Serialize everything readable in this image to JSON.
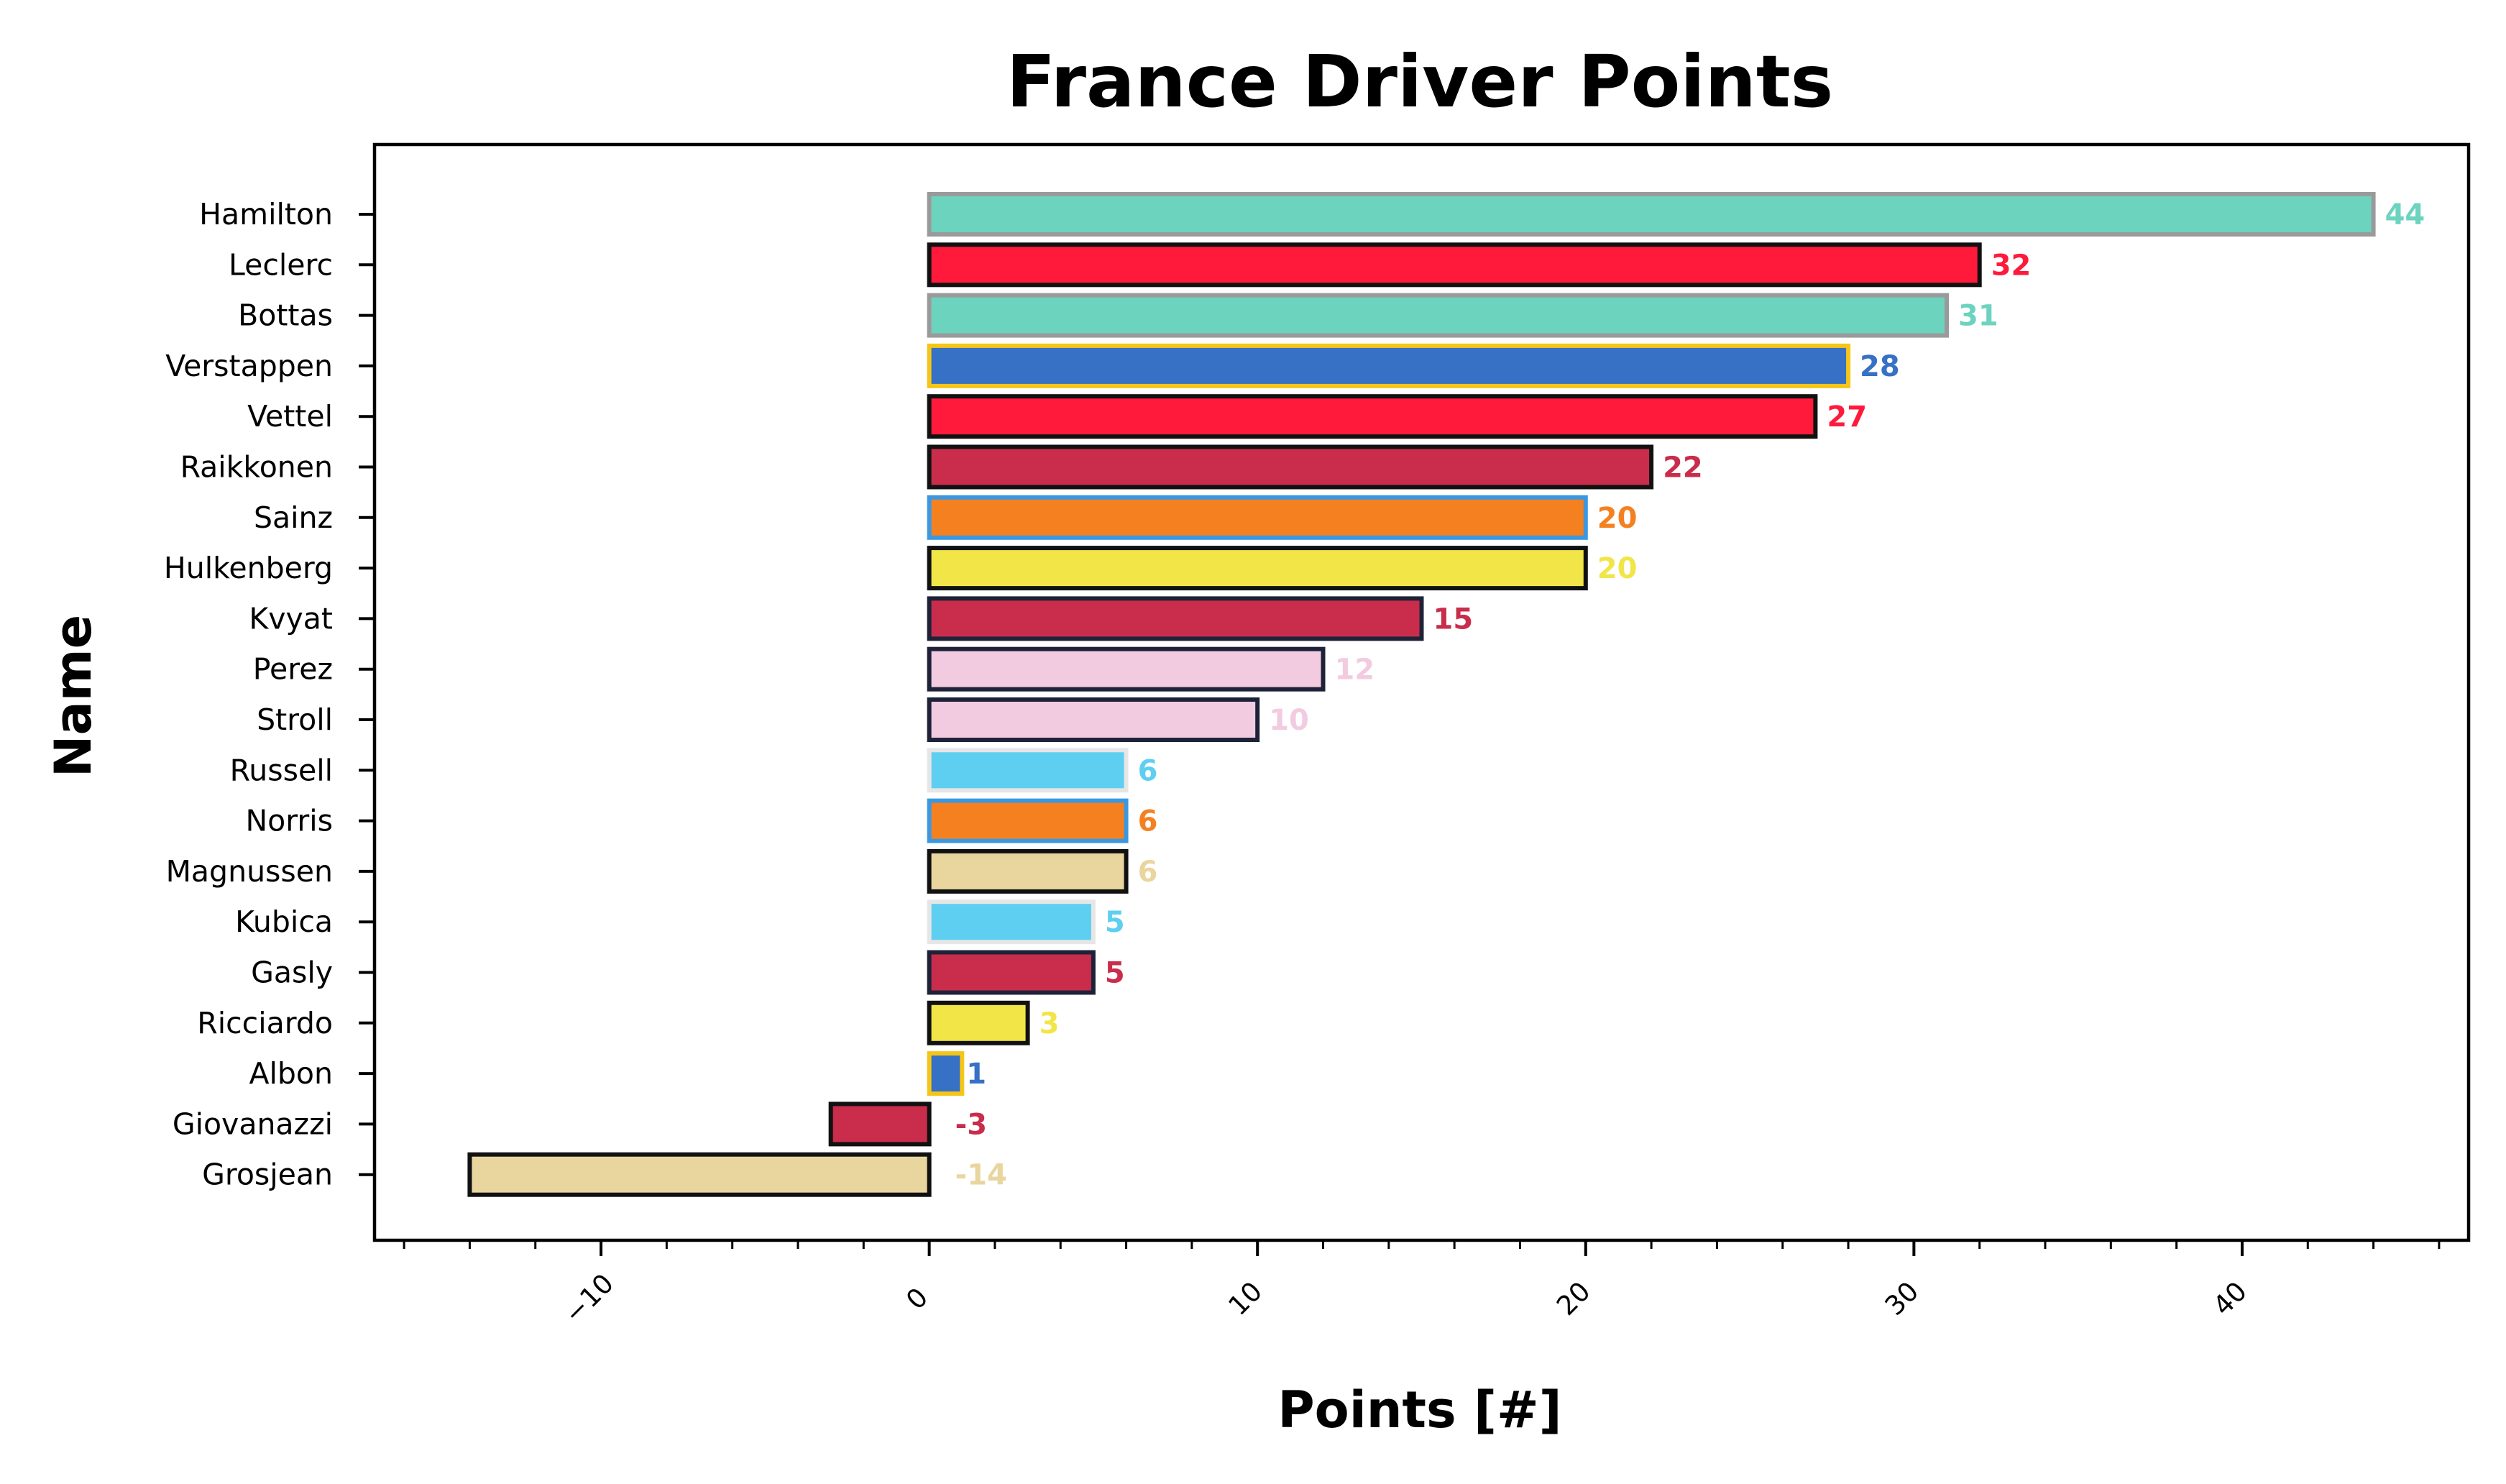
{
  "chart_data": {
    "type": "bar",
    "orientation": "horizontal",
    "title": "France Driver Points",
    "xlabel": "Points [#]",
    "ylabel": "Name",
    "xlim": [
      -16.9,
      46.9
    ],
    "xticks": [
      -10,
      0,
      10,
      20,
      30,
      40
    ],
    "xtick_labels": [
      "−10",
      "0",
      "10",
      "20",
      "30",
      "40"
    ],
    "grid": false,
    "categories": [
      "Hamilton",
      "Leclerc",
      "Bottas",
      "Verstappen",
      "Vettel",
      "Raikkonen",
      "Sainz",
      "Hulkenberg",
      "Kvyat",
      "Perez",
      "Stroll",
      "Russell",
      "Norris",
      "Magnussen",
      "Kubica",
      "Gasly",
      "Ricciardo",
      "Albon",
      "Giovanazzi",
      "Grosjean"
    ],
    "values": [
      44,
      32,
      31,
      28,
      27,
      22,
      20,
      20,
      15,
      12,
      10,
      6,
      6,
      6,
      5,
      5,
      3,
      1,
      -3,
      -14
    ],
    "fill_colors": [
      "#6cd3bf",
      "#ff1a3c",
      "#6cd3bf",
      "#3671c6",
      "#ff1a3c",
      "#c92d4b",
      "#f58020",
      "#f1e547",
      "#c92d4b",
      "#f2cbe0",
      "#f2cbe0",
      "#5ecff1",
      "#f58020",
      "#e9d69f",
      "#5ecff1",
      "#c92d4b",
      "#f1e547",
      "#3671c6",
      "#c92d4b",
      "#e9d69f"
    ],
    "edge_colors": [
      "#9a9a9a",
      "#111111",
      "#9a9a9a",
      "#f5c518",
      "#111111",
      "#111111",
      "#3b98e0",
      "#111111",
      "#1e2238",
      "#1e2238",
      "#1e2238",
      "#e6e6e6",
      "#3b98e0",
      "#111111",
      "#e6e6e6",
      "#1e2238",
      "#111111",
      "#f5c518",
      "#111111",
      "#111111"
    ],
    "labels": [
      "44",
      "32",
      "31",
      "28",
      "27",
      "22",
      "20",
      "20",
      "15",
      "12",
      "10",
      "6",
      "6",
      "6",
      "5",
      "5",
      "3",
      "1",
      "-3",
      "-14"
    ],
    "label_colors": [
      "#6cd3bf",
      "#ff1a3c",
      "#6cd3bf",
      "#3671c6",
      "#ff1a3c",
      "#c92d4b",
      "#f58020",
      "#f1e547",
      "#c92d4b",
      "#f2cbe0",
      "#f2cbe0",
      "#5ecff1",
      "#f58020",
      "#e9d69f",
      "#5ecff1",
      "#c92d4b",
      "#f1e547",
      "#3671c6",
      "#c92d4b",
      "#e9d69f"
    ]
  }
}
